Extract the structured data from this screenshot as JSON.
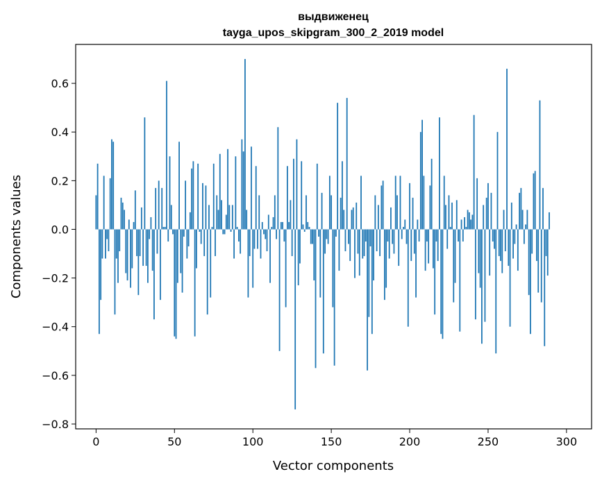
{
  "chart_data": {
    "type": "bar",
    "title": "выдвиженец",
    "subtitle": "tayga_upos_skipgram_300_2_2019 model",
    "xlabel": "Vector components",
    "ylabel": "Components values",
    "xlim": [
      -13,
      316
    ],
    "ylim": [
      -0.82,
      0.76
    ],
    "xticks": [
      0,
      50,
      100,
      150,
      200,
      250,
      300
    ],
    "yticks": [
      -0.8,
      -0.6,
      -0.4,
      -0.2,
      0.0,
      0.2,
      0.4,
      0.6
    ],
    "ytick_labels": [
      "−0.8",
      "−0.6",
      "−0.4",
      "−0.2",
      "0.0",
      "0.2",
      "0.4",
      "0.6"
    ],
    "grid": false,
    "bar_color": "#1f77b4",
    "values": [
      0.14,
      0.27,
      -0.43,
      -0.29,
      -0.12,
      0.22,
      -0.12,
      -0.04,
      -0.09,
      0.21,
      0.37,
      0.36,
      -0.35,
      -0.12,
      -0.22,
      -0.09,
      0.13,
      0.11,
      0.08,
      -0.18,
      -0.21,
      0.04,
      -0.24,
      -0.16,
      0.03,
      0.16,
      -0.11,
      -0.27,
      -0.11,
      0.09,
      -0.15,
      0.46,
      -0.15,
      -0.22,
      -0.04,
      0.05,
      -0.17,
      -0.37,
      0.17,
      -0.1,
      0.2,
      -0.29,
      0.17,
      0.01,
      0.01,
      0.61,
      -0.05,
      0.3,
      0.1,
      -0.02,
      -0.44,
      -0.45,
      -0.22,
      0.36,
      -0.18,
      -0.26,
      -0.03,
      0.2,
      -0.12,
      -0.07,
      0.07,
      0.25,
      0.28,
      -0.44,
      -0.16,
      0.27,
      -0.01,
      -0.06,
      0.19,
      -0.11,
      0.18,
      -0.35,
      0.1,
      -0.28,
      0.01,
      0.27,
      -0.11,
      0.14,
      0.08,
      0.31,
      0.12,
      -0.02,
      -0.02,
      0.06,
      0.33,
      0.1,
      -0.01,
      0.1,
      -0.12,
      0.3,
      0.01,
      -0.05,
      -0.1,
      0.37,
      0.32,
      0.7,
      0.08,
      -0.28,
      -0.11,
      0.34,
      -0.24,
      -0.08,
      0.26,
      -0.08,
      0.14,
      -0.12,
      0.03,
      -0.02,
      -0.04,
      -0.09,
      0.06,
      -0.22,
      0.01,
      0.05,
      0.14,
      -0.04,
      0.42,
      -0.5,
      0.03,
      0.03,
      -0.05,
      -0.32,
      0.26,
      0.03,
      0.12,
      -0.11,
      0.29,
      -0.74,
      0.37,
      -0.23,
      -0.14,
      0.28,
      0.02,
      -0.01,
      0.14,
      0.03,
      0.01,
      -0.06,
      -0.06,
      -0.21,
      -0.57,
      0.27,
      -0.03,
      -0.28,
      0.15,
      -0.51,
      -0.1,
      -0.04,
      -0.06,
      0.22,
      0.14,
      -0.32,
      -0.56,
      -0.03,
      0.52,
      -0.17,
      0.13,
      0.28,
      0.08,
      -0.09,
      0.54,
      -0.06,
      -0.13,
      0.08,
      0.09,
      -0.2,
      0.11,
      -0.1,
      -0.19,
      0.22,
      -0.12,
      -0.11,
      -0.05,
      -0.58,
      -0.36,
      -0.07,
      -0.43,
      -0.21,
      0.14,
      -0.09,
      0.1,
      -0.11,
      0.18,
      0.2,
      -0.29,
      -0.24,
      -0.05,
      -0.12,
      0.09,
      -0.06,
      -0.1,
      0.22,
      0.14,
      -0.15,
      0.22,
      -0.04,
      0.01,
      0.04,
      -0.06,
      -0.4,
      0.19,
      -0.13,
      0.13,
      -0.1,
      -0.28,
      0.04,
      -0.05,
      0.4,
      0.45,
      0.22,
      -0.17,
      -0.05,
      -0.14,
      0.18,
      0.29,
      -0.16,
      -0.35,
      -0.05,
      -0.13,
      0.46,
      -0.43,
      -0.45,
      0.22,
      0.1,
      -0.08,
      0.14,
      0.01,
      0.11,
      -0.3,
      -0.22,
      0.12,
      -0.05,
      -0.42,
      0.04,
      -0.05,
      0.05,
      0.01,
      0.08,
      0.07,
      0.04,
      0.06,
      0.47,
      -0.37,
      0.21,
      -0.18,
      -0.24,
      -0.47,
      0.1,
      -0.38,
      0.13,
      0.19,
      -0.19,
      0.15,
      -0.05,
      -0.08,
      -0.51,
      0.4,
      -0.11,
      -0.13,
      -0.18,
      0.08,
      -0.09,
      0.66,
      -0.15,
      -0.4,
      0.11,
      -0.12,
      -0.06,
      0.02,
      -0.17,
      0.15,
      0.17,
      0.08,
      -0.06,
      0.02,
      0.08,
      -0.27,
      -0.43,
      -0.1,
      0.23,
      0.24,
      -0.13,
      -0.26,
      0.53,
      -0.3,
      0.17,
      -0.48,
      -0.11,
      -0.19,
      0.07
    ]
  }
}
